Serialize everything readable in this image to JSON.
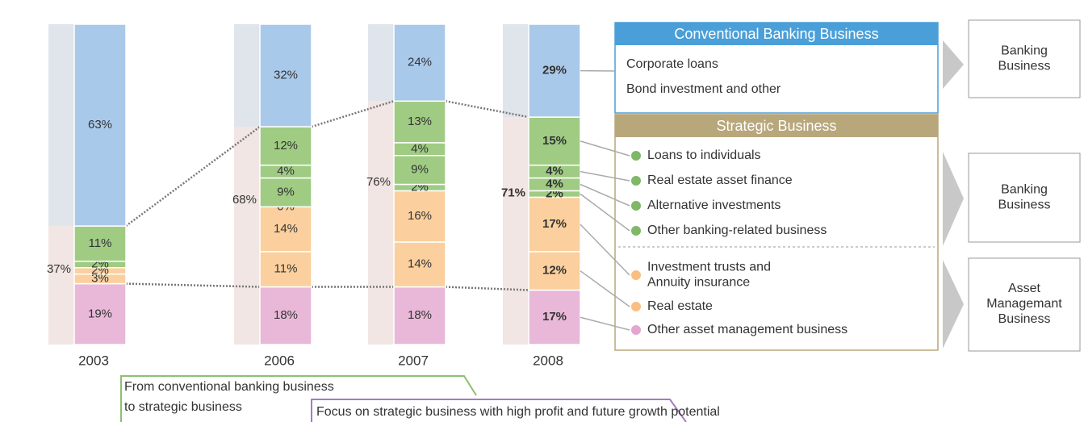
{
  "chart_data": {
    "type": "bar",
    "stacked": true,
    "categories": [
      "2003",
      "2006",
      "2007",
      "2008"
    ],
    "series": [
      {
        "name": "Other asset management business",
        "color": "#e9b8d8",
        "values": [
          19,
          18,
          18,
          17
        ],
        "value_labels": [
          "19%",
          "18%",
          "18%",
          "17%"
        ]
      },
      {
        "name": "Real estate",
        "color": "#fbd09e",
        "values": [
          3,
          11,
          14,
          12
        ],
        "value_labels": [
          "3%",
          "11%",
          "14%",
          "12%"
        ]
      },
      {
        "name": "Investment trusts and\nAnnuity insurance",
        "color": "#fbd09e",
        "values": [
          2,
          14,
          16,
          17
        ],
        "value_labels": [
          "2%",
          "14%",
          "16%",
          "17%"
        ]
      },
      {
        "name": "Other banking-related business",
        "color": "#9fcb83",
        "values": [
          2,
          0,
          2,
          2
        ],
        "value_labels": [
          "2%",
          "0%",
          "2%",
          "2%"
        ]
      },
      {
        "name": "Alternative investments",
        "color": "#9fcb83",
        "values": [
          null,
          9,
          9,
          4
        ],
        "value_labels": [
          null,
          "9%",
          "9%",
          "4%"
        ]
      },
      {
        "name": "Real estate asset finance",
        "color": "#9fcb83",
        "values": [
          null,
          4,
          4,
          4
        ],
        "value_labels": [
          null,
          "4%",
          "4%",
          "4%"
        ]
      },
      {
        "name": "Loans to individuals",
        "color": "#9fcb83",
        "values": [
          11,
          12,
          13,
          15
        ],
        "value_labels": [
          "11%",
          "12%",
          "13%",
          "15%"
        ]
      },
      {
        "name": "Conventional Banking Business",
        "color": "#a9c9eb",
        "values": [
          63,
          32,
          24,
          29
        ],
        "value_labels": [
          "63%",
          "32%",
          "24%",
          "29%"
        ]
      }
    ],
    "strategic_totals": [
      37,
      68,
      76,
      71
    ],
    "strategic_total_labels": [
      "37%",
      "68%",
      "76%",
      "71%"
    ],
    "ylim": [
      0,
      100
    ],
    "conventional_items": [
      "Corporate loans",
      "Bond investment and other"
    ],
    "strategic_header": "Strategic Business",
    "business_boxes": [
      "Banking\nBusiness",
      "Banking\nBusiness",
      "Asset\nManagemant\nBusiness"
    ],
    "banner_1": [
      "From conventional banking business",
      "to strategic business"
    ],
    "banner_2": "Focus on strategic business with high profit and future growth potential"
  }
}
